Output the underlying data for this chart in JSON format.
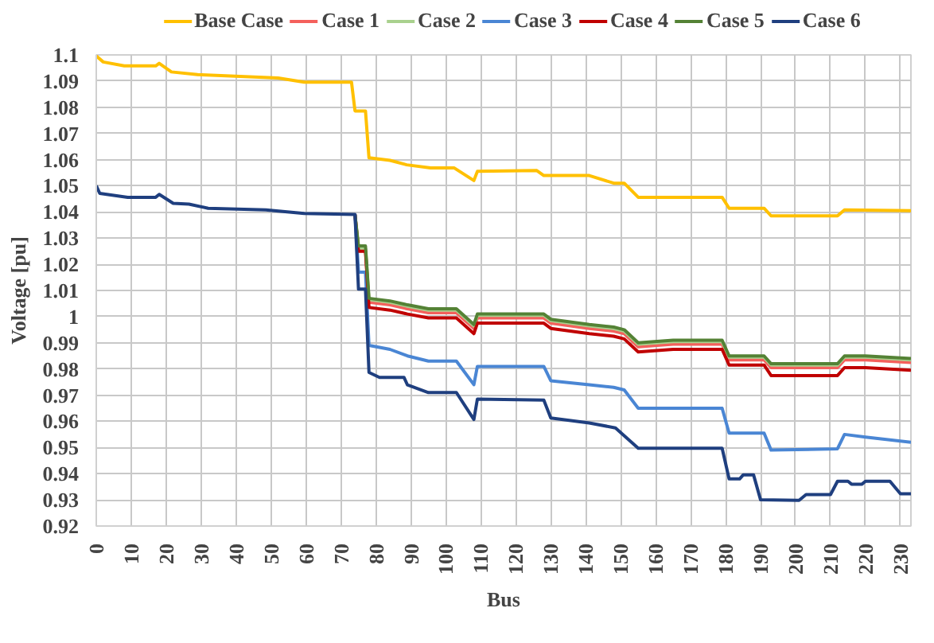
{
  "chart_data": {
    "type": "line",
    "xlabel": "Bus",
    "ylabel": "Voltage [pu]",
    "xlim": [
      0,
      233
    ],
    "ylim": [
      0.92,
      1.1
    ],
    "xticks": [
      0,
      10,
      20,
      30,
      40,
      50,
      60,
      70,
      80,
      90,
      100,
      110,
      120,
      130,
      140,
      150,
      160,
      170,
      180,
      190,
      200,
      210,
      220,
      230
    ],
    "yticks": [
      0.92,
      0.93,
      0.94,
      0.95,
      0.96,
      0.97,
      0.98,
      0.99,
      1,
      1.01,
      1.02,
      1.03,
      1.04,
      1.05,
      1.06,
      1.07,
      1.08,
      1.09,
      1.1
    ],
    "grid": true,
    "legend": "top",
    "marker": "none",
    "line_style": "solid",
    "series": [
      {
        "name": "Base Case",
        "color": "#ffc000",
        "x": [
          0,
          2,
          8,
          17,
          18,
          21.5,
          29,
          52,
          59.5,
          73,
          74,
          75,
          77,
          78,
          84,
          88.8,
          95.6,
          102.4,
          108,
          109,
          126,
          128,
          141,
          148,
          151,
          155,
          165,
          179,
          181,
          191,
          193,
          212,
          214,
          233
        ],
        "values": [
          1.0996,
          1.0973,
          1.0958,
          1.0958,
          1.0968,
          1.0935,
          1.0925,
          1.0912,
          1.0896,
          1.0896,
          1.0786,
          1.0786,
          1.0786,
          1.0607,
          1.0597,
          1.058,
          1.0568,
          1.0568,
          1.052,
          1.0555,
          1.0558,
          1.0539,
          1.0539,
          1.051,
          1.051,
          1.0456,
          1.0456,
          1.0456,
          1.0414,
          1.0414,
          1.0385,
          1.0385,
          1.0408,
          1.0405
        ]
      },
      {
        "name": "Case 1",
        "color": "#f4605c",
        "x": [
          74,
          75,
          77,
          78,
          84,
          89,
          95,
          103,
          108,
          109,
          128,
          130,
          141,
          148,
          151,
          155,
          165,
          179,
          181,
          191,
          193,
          212,
          214,
          220,
          233
        ],
        "values": [
          1.039,
          1.0255,
          1.0255,
          1.0055,
          1.0045,
          1.003,
          1.0015,
          1.0015,
          0.9955,
          0.9995,
          0.9995,
          0.9975,
          0.9955,
          0.9945,
          0.9935,
          0.9885,
          0.9895,
          0.9895,
          0.9835,
          0.9835,
          0.9805,
          0.9805,
          0.9835,
          0.9835,
          0.9825
        ]
      },
      {
        "name": "Case 2",
        "color": "#a9d18e",
        "x": [
          74,
          75,
          77,
          78,
          84,
          89,
          95,
          103,
          108,
          109,
          128,
          130,
          141,
          148,
          151,
          155,
          165,
          179,
          181,
          191,
          193,
          212,
          214,
          220,
          233
        ],
        "values": [
          1.039,
          1.026,
          1.026,
          1.0065,
          1.0055,
          1.004,
          1.0025,
          1.0025,
          0.9965,
          1.0005,
          1.0005,
          0.9985,
          0.9965,
          0.9955,
          0.9945,
          0.9895,
          0.9905,
          0.9905,
          0.9845,
          0.9845,
          0.9815,
          0.9815,
          0.9845,
          0.9845,
          0.9835
        ]
      },
      {
        "name": "Case 3",
        "color": "#4a86d4",
        "x": [
          74,
          75,
          77,
          78,
          84,
          89,
          95,
          103,
          108,
          109,
          128,
          130,
          141,
          148,
          151,
          155,
          165,
          179,
          181,
          191,
          193,
          212,
          214,
          220,
          233
        ],
        "values": [
          1.039,
          1.017,
          1.017,
          0.989,
          0.9875,
          0.985,
          0.983,
          0.983,
          0.974,
          0.981,
          0.981,
          0.9755,
          0.974,
          0.973,
          0.972,
          0.965,
          0.965,
          0.965,
          0.9555,
          0.9555,
          0.949,
          0.9495,
          0.955,
          0.954,
          0.952
        ]
      },
      {
        "name": "Case 4",
        "color": "#c00000",
        "x": [
          74,
          75,
          77,
          78,
          84,
          89,
          95,
          103,
          108,
          109,
          128,
          130,
          141,
          148,
          151,
          155,
          165,
          179,
          181,
          191,
          193,
          212,
          214,
          220,
          233
        ],
        "values": [
          1.039,
          1.025,
          1.025,
          1.0035,
          1.0025,
          1.001,
          0.9995,
          0.9995,
          0.9935,
          0.9975,
          0.9975,
          0.9955,
          0.9935,
          0.9925,
          0.9915,
          0.9865,
          0.9875,
          0.9875,
          0.9815,
          0.9815,
          0.9775,
          0.9775,
          0.9805,
          0.9805,
          0.9795
        ]
      },
      {
        "name": "Case 5",
        "color": "#548235",
        "x": [
          74,
          75,
          77,
          78,
          84,
          89,
          95,
          103,
          108,
          109,
          128,
          130,
          141,
          148,
          151,
          155,
          165,
          179,
          181,
          191,
          193,
          212,
          214,
          220,
          233
        ],
        "values": [
          1.039,
          1.027,
          1.027,
          1.007,
          1.006,
          1.0045,
          1.003,
          1.003,
          0.997,
          1.001,
          1.001,
          0.999,
          0.997,
          0.996,
          0.995,
          0.99,
          0.991,
          0.991,
          0.985,
          0.985,
          0.982,
          0.982,
          0.985,
          0.985,
          0.984
        ]
      },
      {
        "name": "Case 6",
        "color": "#1f3f7f",
        "x": [
          0,
          1,
          9,
          17,
          18,
          22,
          26.5,
          32,
          48.5,
          59.5,
          74,
          75,
          77,
          78,
          81,
          88,
          89,
          95,
          103,
          108,
          109,
          128,
          130,
          141,
          148.5,
          155,
          165,
          179,
          181,
          184,
          185,
          188,
          190,
          201,
          203,
          210,
          212,
          215,
          216,
          219,
          220,
          227,
          230,
          233
        ],
        "values": [
          1.05,
          1.0471,
          1.0456,
          1.0456,
          1.0467,
          1.0433,
          1.043,
          1.0414,
          1.0408,
          1.0394,
          1.039,
          1.0105,
          1.0105,
          0.9787,
          0.9768,
          0.9768,
          0.9739,
          0.971,
          0.971,
          0.9607,
          0.9685,
          0.9681,
          0.9613,
          0.9594,
          0.9575,
          0.9497,
          0.9497,
          0.9497,
          0.938,
          0.938,
          0.9395,
          0.9395,
          0.93,
          0.9298,
          0.932,
          0.932,
          0.9371,
          0.9371,
          0.936,
          0.936,
          0.9371,
          0.9371,
          0.9323,
          0.9323
        ]
      }
    ]
  }
}
